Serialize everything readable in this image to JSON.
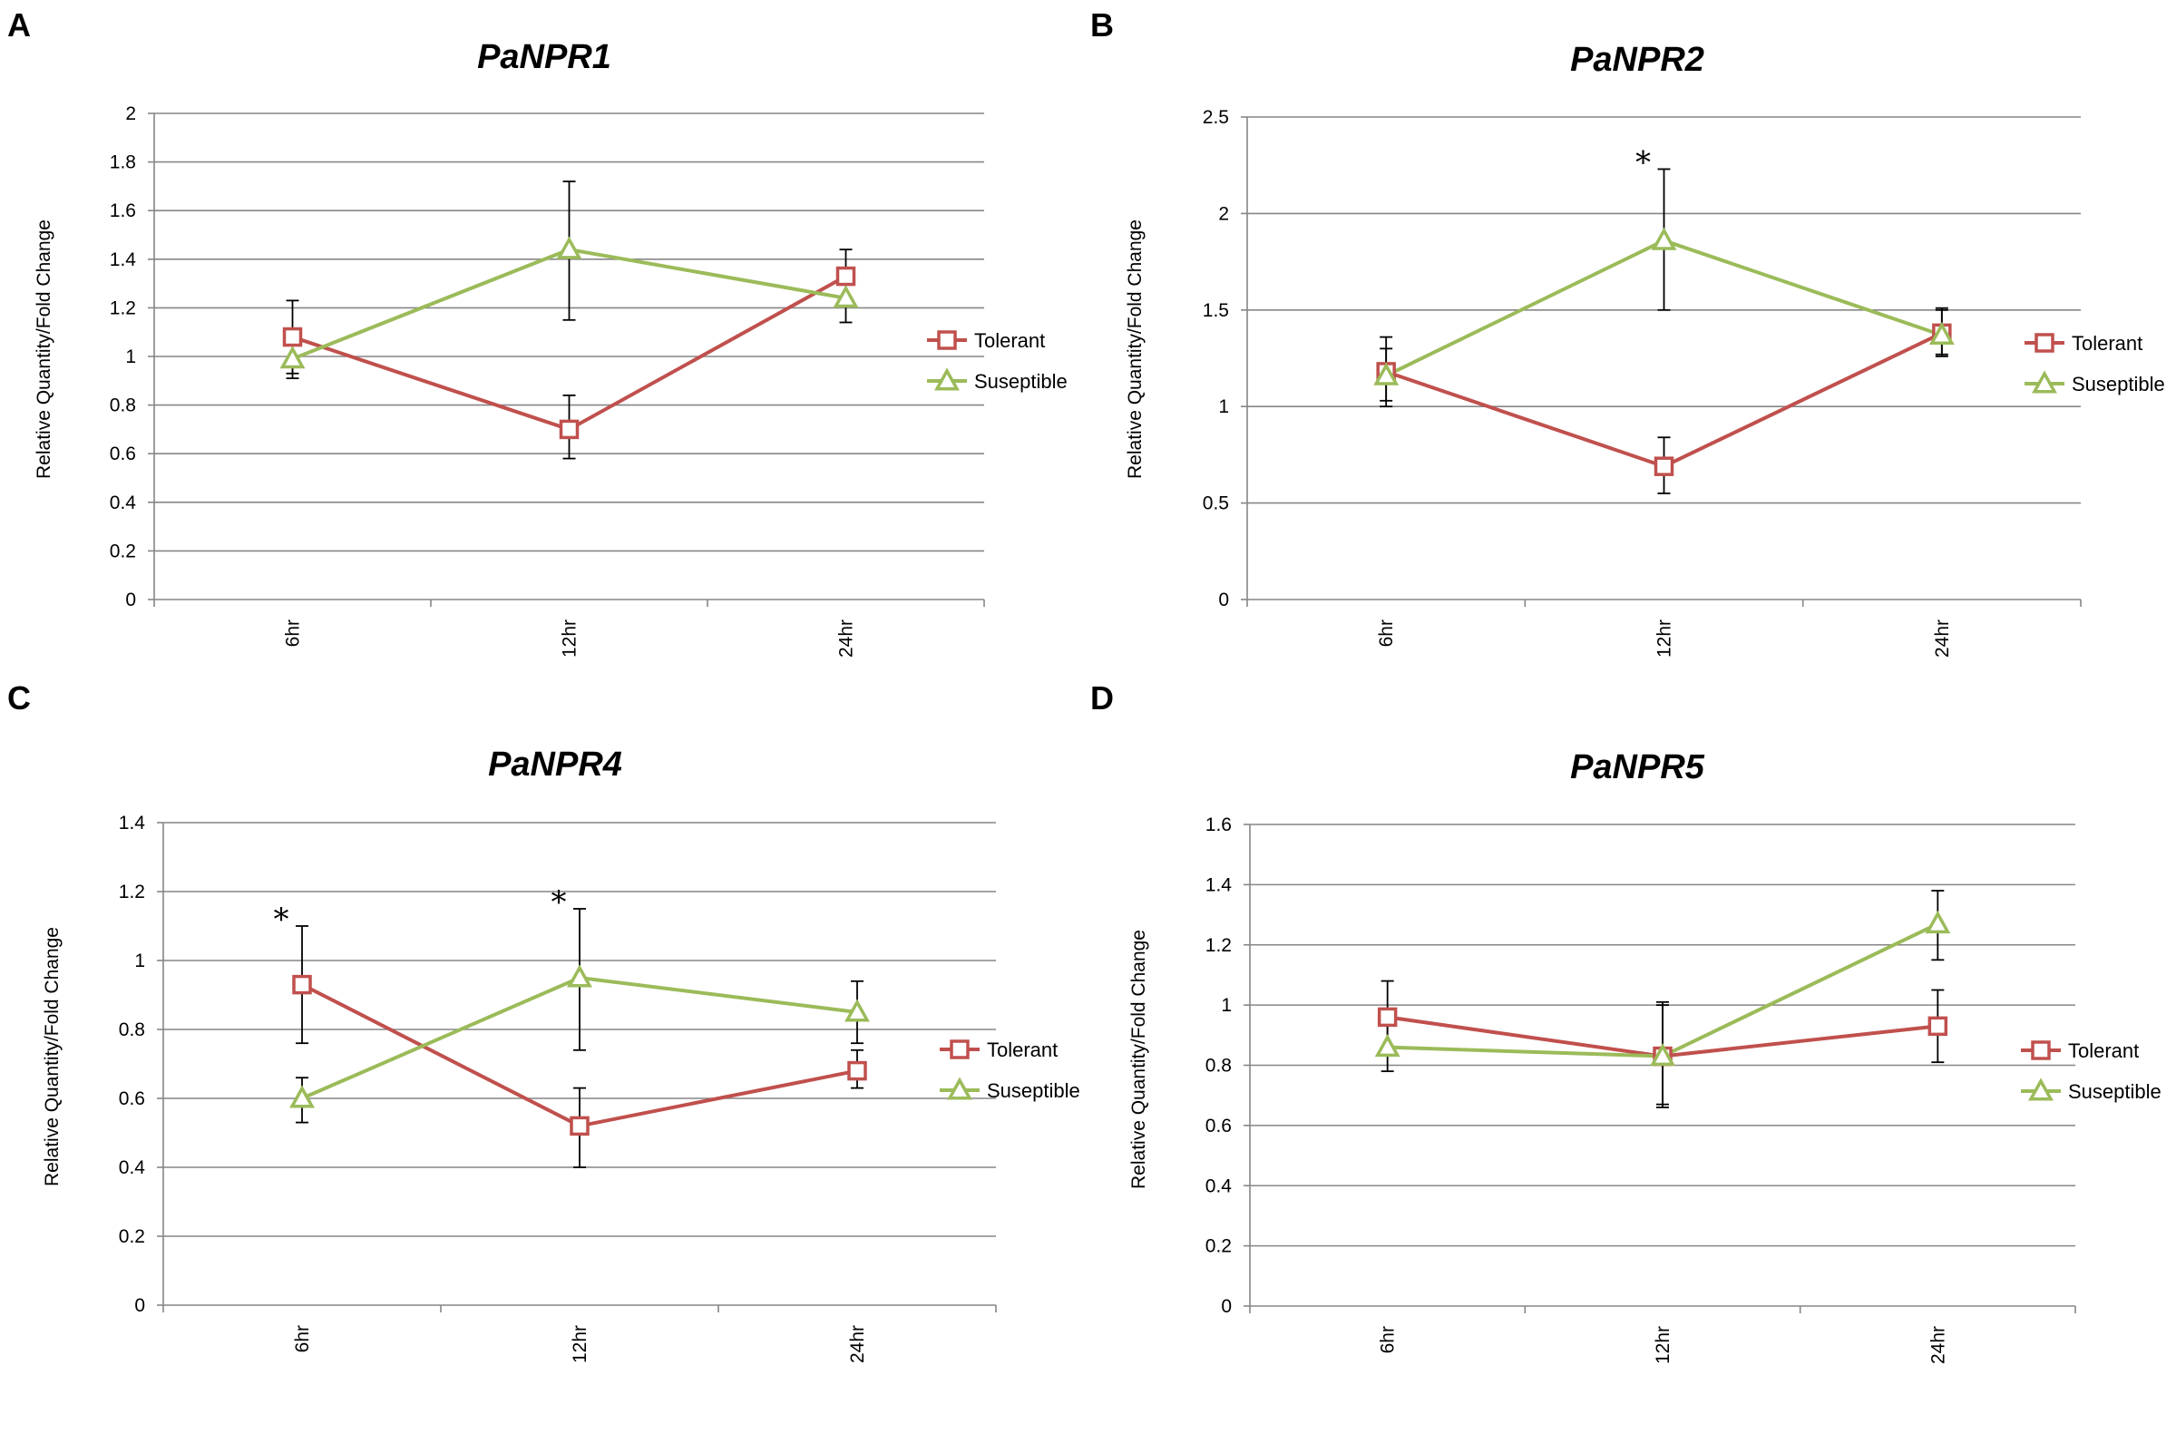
{
  "colors": {
    "tolerant": "#c0504d",
    "susceptible": "#9bbb59",
    "grid": "#868686",
    "errorbar": "#000000"
  },
  "chart_data": [
    {
      "panel": "A",
      "type": "line",
      "title": "PaNPR1",
      "xlabel": "",
      "ylabel": "Relative Quantity/Fold Change",
      "categories": [
        "6hr",
        "12hr",
        "24hr"
      ],
      "ylim": [
        0,
        2
      ],
      "yticks": [
        "0",
        "0.2",
        "0.4",
        "0.6",
        "0.8",
        "1",
        "1.2",
        "1.4",
        "1.6",
        "1.8",
        "2"
      ],
      "series": [
        {
          "name": "Tolerant",
          "marker": "square",
          "values": [
            1.08,
            0.7,
            1.33
          ],
          "err_low": [
            0.93,
            0.58,
            1.22
          ],
          "err_high": [
            1.23,
            0.84,
            1.44
          ]
        },
        {
          "name": "Suseptible",
          "marker": "triangle",
          "values": [
            0.99,
            1.44,
            1.24
          ],
          "err_low": [
            0.91,
            1.15,
            1.14
          ],
          "err_high": [
            1.06,
            1.72,
            1.33
          ]
        }
      ],
      "annotations": []
    },
    {
      "panel": "B",
      "type": "line",
      "title": "PaNPR2",
      "xlabel": "",
      "ylabel": "Relative Quantity/Fold Change",
      "categories": [
        "6hr",
        "12hr",
        "24hr"
      ],
      "ylim": [
        0,
        2.5
      ],
      "yticks": [
        "0",
        "0.5",
        "1",
        "1.5",
        "2",
        "2.5"
      ],
      "series": [
        {
          "name": "Tolerant",
          "marker": "square",
          "values": [
            1.18,
            0.69,
            1.38
          ],
          "err_low": [
            1.03,
            0.55,
            1.26
          ],
          "err_high": [
            1.3,
            0.84,
            1.5
          ]
        },
        {
          "name": "Suseptible",
          "marker": "triangle",
          "values": [
            1.16,
            1.86,
            1.37
          ],
          "err_low": [
            1.0,
            1.5,
            1.27
          ],
          "err_high": [
            1.36,
            2.23,
            1.51
          ]
        }
      ],
      "annotations": [
        {
          "category": "12hr",
          "text": "*"
        }
      ]
    },
    {
      "panel": "C",
      "type": "line",
      "title": "PaNPR4",
      "xlabel": "",
      "ylabel": "Relative Quantity/Fold Change",
      "categories": [
        "6hr",
        "12hr",
        "24hr"
      ],
      "ylim": [
        0,
        1.4
      ],
      "yticks": [
        "0",
        "0.2",
        "0.4",
        "0.6",
        "0.8",
        "1",
        "1.2",
        "1.4"
      ],
      "series": [
        {
          "name": "Tolerant",
          "marker": "square",
          "values": [
            0.93,
            0.52,
            0.68
          ],
          "err_low": [
            0.76,
            0.4,
            0.63
          ],
          "err_high": [
            1.1,
            0.63,
            0.74
          ]
        },
        {
          "name": "Suseptible",
          "marker": "triangle",
          "values": [
            0.6,
            0.95,
            0.85
          ],
          "err_low": [
            0.53,
            0.74,
            0.76
          ],
          "err_high": [
            0.66,
            1.15,
            0.94
          ]
        }
      ],
      "annotations": [
        {
          "category": "6hr",
          "text": "*"
        },
        {
          "category": "12hr",
          "text": "*"
        }
      ]
    },
    {
      "panel": "D",
      "type": "line",
      "title": "PaNPR5",
      "xlabel": "",
      "ylabel": "Relative Quantity/Fold Change",
      "categories": [
        "6hr",
        "12hr",
        "24hr"
      ],
      "ylim": [
        0,
        1.6
      ],
      "yticks": [
        "0",
        "0.2",
        "0.4",
        "0.6",
        "0.8",
        "1",
        "1.2",
        "1.4",
        "1.6"
      ],
      "series": [
        {
          "name": "Tolerant",
          "marker": "square",
          "values": [
            0.96,
            0.83,
            0.93
          ],
          "err_low": [
            0.84,
            0.66,
            0.81
          ],
          "err_high": [
            1.08,
            1.0,
            1.05
          ]
        },
        {
          "name": "Suseptible",
          "marker": "triangle",
          "values": [
            0.86,
            0.83,
            1.27
          ],
          "err_low": [
            0.78,
            0.67,
            1.15
          ],
          "err_high": [
            0.94,
            1.01,
            1.38
          ]
        }
      ],
      "annotations": []
    }
  ]
}
